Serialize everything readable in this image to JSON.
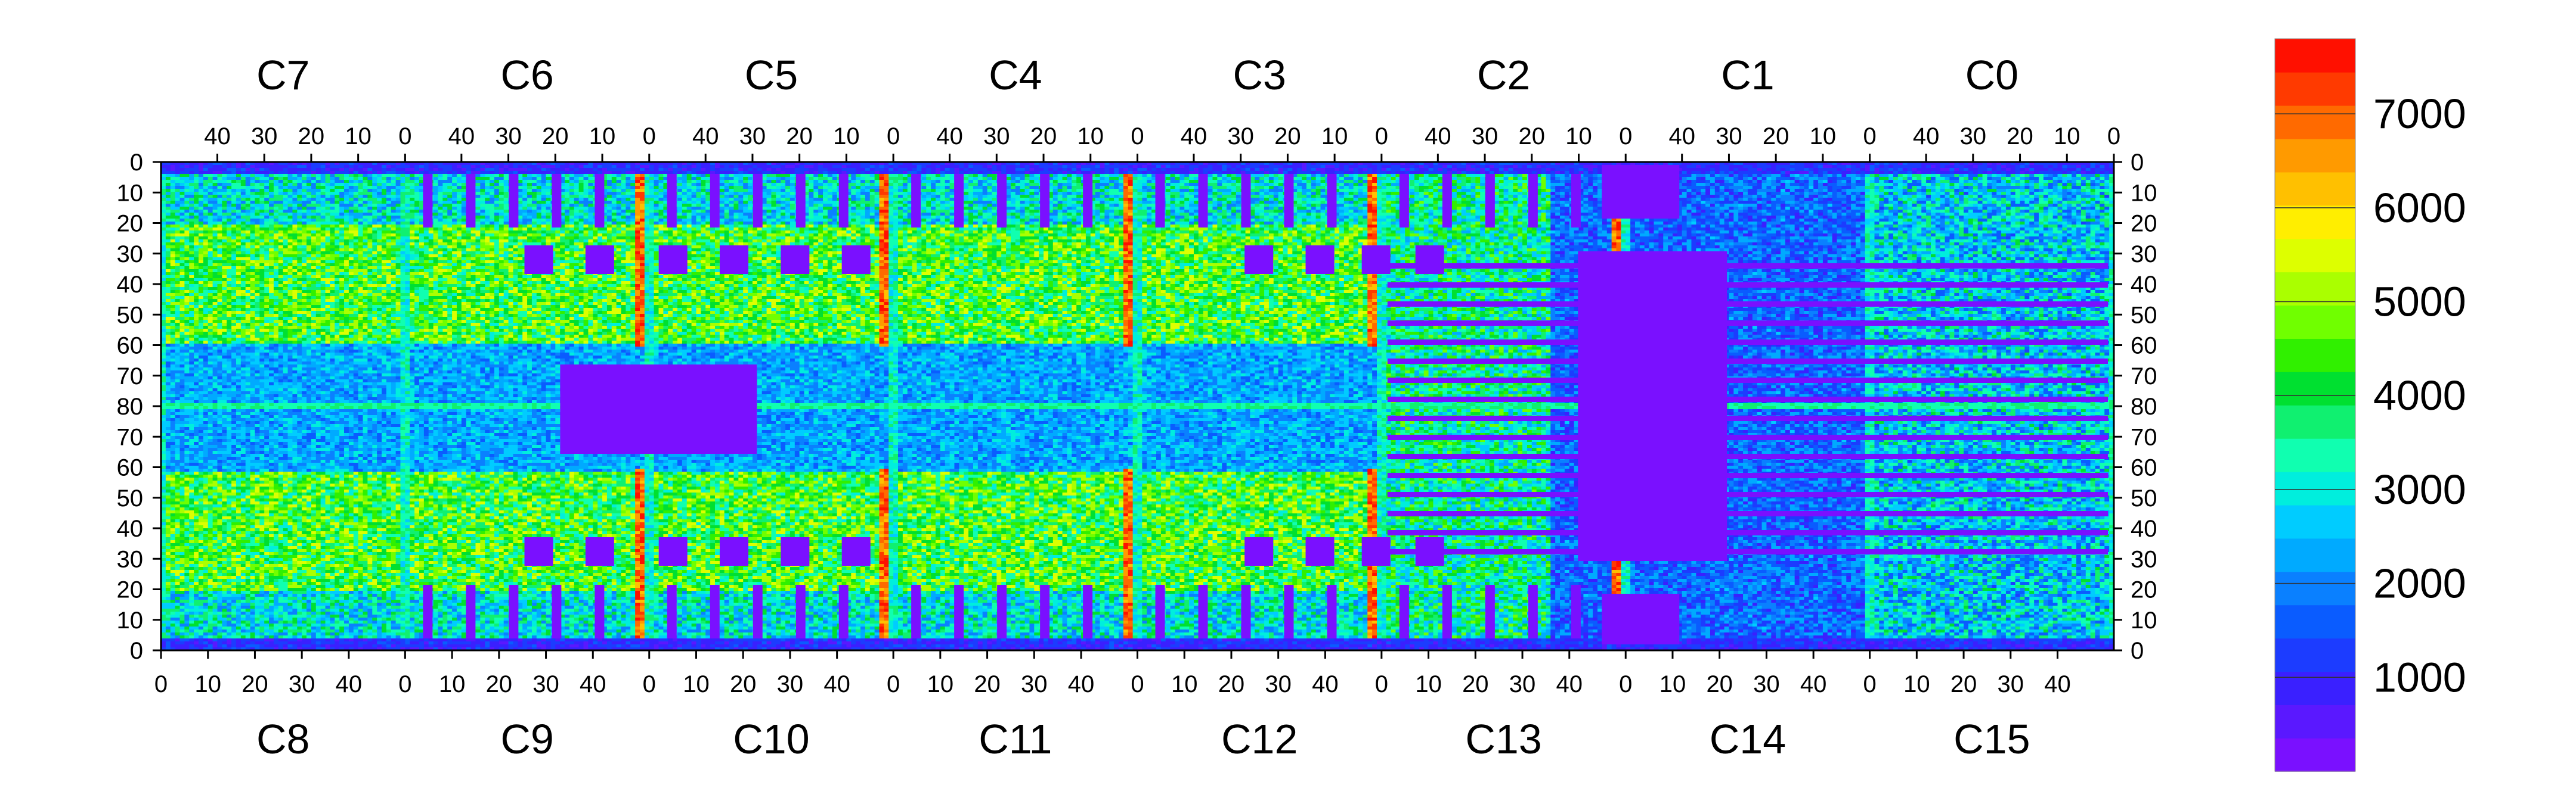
{
  "chart_data": {
    "type": "heatmap",
    "title": "",
    "colorbar": {
      "min": 0,
      "max": 7800,
      "tick_labels": [
        "1000",
        "2000",
        "3000",
        "4000",
        "5000",
        "6000",
        "7000"
      ],
      "tick_values": [
        1000,
        2000,
        3000,
        4000,
        5000,
        6000,
        7000
      ],
      "colors": [
        "#7a10ff",
        "#5a18ff",
        "#3a20ff",
        "#1c3cff",
        "#0a5cff",
        "#0a80ff",
        "#00aaff",
        "#00ccff",
        "#00eedd",
        "#10ffb0",
        "#10f070",
        "#00e030",
        "#30f000",
        "#70ff00",
        "#aaff00",
        "#ddff00",
        "#ffee00",
        "#ffc000",
        "#ff9a00",
        "#ff6a00",
        "#ff3a00",
        "#ff1000"
      ]
    },
    "top_chips": [
      "C7",
      "C6",
      "C5",
      "C4",
      "C3",
      "C2",
      "C1",
      "C0"
    ],
    "bottom_chips": [
      "C8",
      "C9",
      "C10",
      "C11",
      "C12",
      "C13",
      "C14",
      "C15"
    ],
    "top_x_ticks": [
      "40",
      "30",
      "20",
      "10",
      "0"
    ],
    "bottom_x_ticks": [
      "0",
      "10",
      "20",
      "30",
      "40"
    ],
    "left_y_ticks": [
      "0",
      "10",
      "20",
      "30",
      "40",
      "50",
      "60",
      "70",
      "80",
      "70",
      "60",
      "50",
      "40",
      "30",
      "20",
      "10",
      "0"
    ],
    "right_y_ticks": [
      "0",
      "10",
      "20",
      "30",
      "40",
      "50",
      "60",
      "70",
      "80",
      "70",
      "60",
      "50",
      "40",
      "30",
      "20",
      "10",
      "0"
    ],
    "grid": false,
    "legend": "right"
  }
}
